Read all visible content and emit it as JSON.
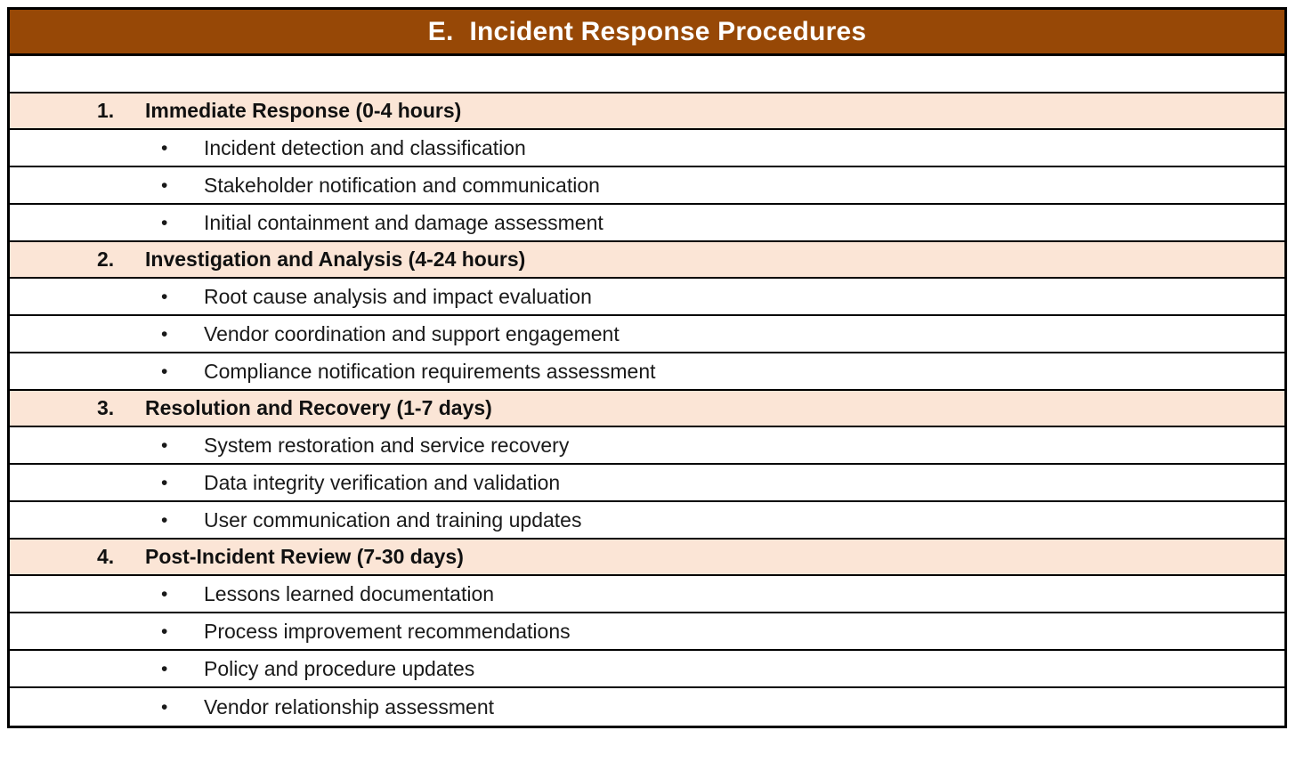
{
  "header": {
    "prefix": "E.",
    "title": "Incident Response Procedures"
  },
  "colors": {
    "header_bg": "#974806",
    "header_text": "#FFFFFF",
    "section_bg": "#FBE5D6",
    "border": "#000000",
    "body_text": "#1A1A1A",
    "heading_text": "#111111"
  },
  "bullet_glyph": "•",
  "sections": [
    {
      "number": "1.",
      "title": "Immediate Response (0-4 hours)",
      "items": [
        "Incident detection and classification",
        "Stakeholder notification and communication",
        "Initial containment and damage assessment"
      ]
    },
    {
      "number": "2.",
      "title": "Investigation and Analysis (4-24 hours)",
      "items": [
        "Root cause analysis and impact evaluation",
        "Vendor coordination and support engagement",
        "Compliance notification requirements assessment"
      ]
    },
    {
      "number": "3.",
      "title": "Resolution and Recovery (1-7 days)",
      "items": [
        "System restoration and service recovery",
        "Data integrity verification and validation",
        "User communication and training updates"
      ]
    },
    {
      "number": "4.",
      "title": "Post-Incident Review (7-30 days)",
      "items": [
        "Lessons learned documentation",
        "Process improvement recommendations",
        "Policy and procedure updates",
        "Vendor relationship assessment"
      ]
    }
  ]
}
